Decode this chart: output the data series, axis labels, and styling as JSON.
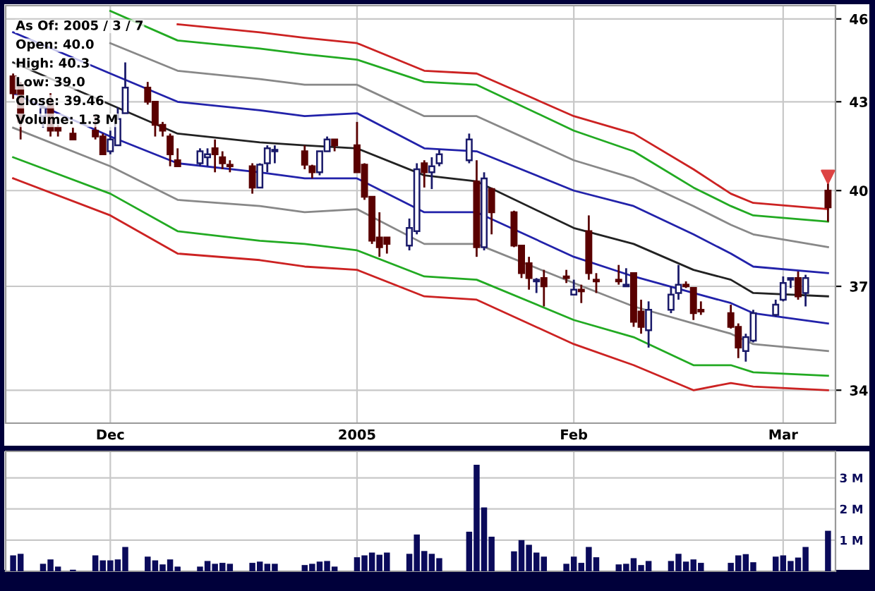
{
  "chart_data": [
    {
      "type": "candlestick",
      "x": [
        "2004-11-18",
        "2004-11-19",
        "2004-11-22",
        "2004-11-23",
        "2004-11-24",
        "2004-11-26",
        "2004-11-29",
        "2004-11-30",
        "2004-12-01",
        "2004-12-02",
        "2004-12-03",
        "2004-12-06",
        "2004-12-07",
        "2004-12-08",
        "2004-12-09",
        "2004-12-10",
        "2004-12-13",
        "2004-12-14",
        "2004-12-15",
        "2004-12-16",
        "2004-12-17",
        "2004-12-20",
        "2004-12-21",
        "2004-12-22",
        "2004-12-23",
        "2004-12-27",
        "2004-12-28",
        "2004-12-29",
        "2004-12-30",
        "2004-12-31",
        "2005-01-03",
        "2005-01-04",
        "2005-01-05",
        "2005-01-06",
        "2005-01-07",
        "2005-01-10",
        "2005-01-11",
        "2005-01-12",
        "2005-01-13",
        "2005-01-14",
        "2005-01-18",
        "2005-01-19",
        "2005-01-20",
        "2005-01-21",
        "2005-01-24",
        "2005-01-25",
        "2005-01-26",
        "2005-01-27",
        "2005-01-28",
        "2005-01-31",
        "2005-02-01",
        "2005-02-02",
        "2005-02-03",
        "2005-02-04",
        "2005-02-07",
        "2005-02-08",
        "2005-02-09",
        "2005-02-10",
        "2005-02-11",
        "2005-02-14",
        "2005-02-15",
        "2005-02-16",
        "2005-02-17",
        "2005-02-18",
        "2005-02-22",
        "2005-02-23",
        "2005-02-24",
        "2005-02-25",
        "2005-02-28",
        "2005-03-01",
        "2005-03-02",
        "2005-03-03",
        "2005-03-04",
        "2005-03-07"
      ],
      "ohlc": [
        [
          43.9,
          44.0,
          43.1,
          43.3
        ],
        [
          43.6,
          43.7,
          41.7,
          42.3
        ],
        [
          42.5,
          43.1,
          42.1,
          42.8
        ],
        [
          42.9,
          43.3,
          41.8,
          42.0
        ],
        [
          42.1,
          42.2,
          41.8,
          42.0
        ],
        [
          41.9,
          42.1,
          41.7,
          41.7
        ],
        [
          42.0,
          42.5,
          41.7,
          41.8
        ],
        [
          41.8,
          41.9,
          41.2,
          41.2
        ],
        [
          41.3,
          42.0,
          41.2,
          41.7
        ],
        [
          41.5,
          42.8,
          41.5,
          42.4
        ],
        [
          42.6,
          44.4,
          42.6,
          43.5
        ],
        [
          43.5,
          43.7,
          42.9,
          43.0
        ],
        [
          43.0,
          43.0,
          41.8,
          42.2
        ],
        [
          42.2,
          42.3,
          41.8,
          42.0
        ],
        [
          41.8,
          41.9,
          40.8,
          41.2
        ],
        [
          41.0,
          41.4,
          40.8,
          40.8
        ],
        [
          40.9,
          41.4,
          40.8,
          41.3
        ],
        [
          41.1,
          41.4,
          40.8,
          41.2
        ],
        [
          41.4,
          41.7,
          40.6,
          41.2
        ],
        [
          41.1,
          41.3,
          40.7,
          40.9
        ],
        [
          40.85,
          41.0,
          40.6,
          40.8
        ],
        [
          40.8,
          40.9,
          39.9,
          40.1
        ],
        [
          40.1,
          40.9,
          40.1,
          40.85
        ],
        [
          40.9,
          41.5,
          40.6,
          41.4
        ],
        [
          41.3,
          41.5,
          40.9,
          41.35
        ],
        [
          41.3,
          41.5,
          40.7,
          40.85
        ],
        [
          40.8,
          40.85,
          40.4,
          40.6
        ],
        [
          40.6,
          41.3,
          40.5,
          41.3
        ],
        [
          41.3,
          41.8,
          41.3,
          41.7
        ],
        [
          41.7,
          41.7,
          41.3,
          41.5
        ],
        [
          41.5,
          42.3,
          40.6,
          40.6
        ],
        [
          40.85,
          40.9,
          39.7,
          39.8
        ],
        [
          39.8,
          39.8,
          38.3,
          38.4
        ],
        [
          38.5,
          39.3,
          37.9,
          38.2
        ],
        [
          38.5,
          38.5,
          38.0,
          38.3
        ],
        [
          38.25,
          39.1,
          38.1,
          38.8
        ],
        [
          38.7,
          40.9,
          38.6,
          40.7
        ],
        [
          40.9,
          41.0,
          40.1,
          40.6
        ],
        [
          40.6,
          41.1,
          40.05,
          40.8
        ],
        [
          40.9,
          41.35,
          40.8,
          41.2
        ],
        [
          41.0,
          41.9,
          40.9,
          41.7
        ],
        [
          40.3,
          41.0,
          37.9,
          38.2
        ],
        [
          38.2,
          40.6,
          38.1,
          40.4
        ],
        [
          40.05,
          40.1,
          38.6,
          39.3
        ],
        [
          39.3,
          39.35,
          38.2,
          38.25
        ],
        [
          38.25,
          38.25,
          37.25,
          37.4
        ],
        [
          37.7,
          37.9,
          36.9,
          37.25
        ],
        [
          37.15,
          37.25,
          36.8,
          37.2
        ],
        [
          37.25,
          37.5,
          36.4,
          37.0
        ],
        [
          37.3,
          37.5,
          37.1,
          37.25
        ],
        [
          36.75,
          37.2,
          36.75,
          36.9
        ],
        [
          36.9,
          37.05,
          36.5,
          36.85
        ],
        [
          38.7,
          39.2,
          37.2,
          37.4
        ],
        [
          37.2,
          37.4,
          36.8,
          37.15
        ],
        [
          37.2,
          37.65,
          37.05,
          37.15
        ],
        [
          37.0,
          37.55,
          37.0,
          37.05
        ],
        [
          37.4,
          37.4,
          35.8,
          35.95
        ],
        [
          36.25,
          36.6,
          35.6,
          35.8
        ],
        [
          35.7,
          36.55,
          35.2,
          36.3
        ],
        [
          36.3,
          37.0,
          36.2,
          36.75
        ],
        [
          36.8,
          37.65,
          36.6,
          37.05
        ],
        [
          37.05,
          37.15,
          36.95,
          37.0
        ],
        [
          36.95,
          36.95,
          36.0,
          36.2
        ],
        [
          36.3,
          36.55,
          36.15,
          36.25
        ],
        [
          36.2,
          36.45,
          35.75,
          35.8
        ],
        [
          35.8,
          35.9,
          34.9,
          35.2
        ],
        [
          35.1,
          35.6,
          34.8,
          35.5
        ],
        [
          35.4,
          36.3,
          35.35,
          36.2
        ],
        [
          36.15,
          36.6,
          36.1,
          36.45
        ],
        [
          36.6,
          37.3,
          36.55,
          37.1
        ],
        [
          37.2,
          37.25,
          36.95,
          37.25
        ],
        [
          37.25,
          37.45,
          36.6,
          36.7
        ],
        [
          36.8,
          37.35,
          36.4,
          37.25
        ],
        [
          40.0,
          40.3,
          39.0,
          39.46
        ]
      ],
      "colors": [
        "#5a0000",
        "#5a0000",
        "#ffffff",
        "#5a0000",
        "#5a0000",
        "#5a0000",
        "#5a0000",
        "#5a0000",
        "#ffffff",
        "#ffffff",
        "#ffffff",
        "#5a0000",
        "#5a0000",
        "#5a0000",
        "#5a0000",
        "#5a0000",
        "#ffffff",
        "#ffffff",
        "#5a0000",
        "#5a0000",
        "#5a0000",
        "#5a0000",
        "#ffffff",
        "#ffffff",
        "#ffffff",
        "#5a0000",
        "#5a0000",
        "#ffffff",
        "#ffffff",
        "#5a0000",
        "#5a0000",
        "#5a0000",
        "#5a0000",
        "#5a0000",
        "#5a0000",
        "#ffffff",
        "#ffffff",
        "#5a0000",
        "#ffffff",
        "#ffffff",
        "#ffffff",
        "#5a0000",
        "#ffffff",
        "#5a0000",
        "#5a0000",
        "#5a0000",
        "#5a0000",
        "#ffffff",
        "#5a0000",
        "#5a0000",
        "#ffffff",
        "#5a0000",
        "#5a0000",
        "#5a0000",
        "#5a0000",
        "#ffffff",
        "#5a0000",
        "#5a0000",
        "#ffffff",
        "#ffffff",
        "#ffffff",
        "#5a0000",
        "#5a0000",
        "#5a0000",
        "#5a0000",
        "#5a0000",
        "#ffffff",
        "#ffffff",
        "#ffffff",
        "#ffffff",
        "#ffffff",
        "#5a0000",
        "#ffffff",
        "#5a0000"
      ],
      "log": true,
      "ylim": [
        33.1,
        46.5
      ],
      "yticks": [
        34,
        37,
        40,
        43,
        46
      ],
      "xlim": [
        "2004-11-17",
        "2005-03-08"
      ],
      "xticks": [
        {
          "value": "2004-12-01",
          "label": "Dec"
        },
        {
          "value": "2005-01-03",
          "label": "2005"
        },
        {
          "value": "2005-02-01",
          "label": "Feb"
        },
        {
          "value": "2005-03-01",
          "label": "Mar"
        }
      ],
      "grid": true,
      "annotations": [
        "As Of: 2005 / 3 / 7",
        "Open: 40.0",
        "High: 40.3",
        "Low: 39.0",
        "Close: 39.46",
        "Volume: 1.3 M"
      ],
      "series": [
        {
          "type": "line",
          "color": "#cc2222",
          "x": [
            "2004-12-10",
            "2004-12-21",
            "2004-12-27",
            "2005-01-03",
            "2005-01-12",
            "2005-01-19",
            "2005-02-01",
            "2005-02-09",
            "2005-02-17",
            "2005-02-22",
            "2005-02-25",
            "2005-03-07"
          ],
          "values": [
            45.8,
            45.5,
            45.3,
            45.1,
            44.1,
            44.0,
            42.5,
            41.9,
            40.7,
            39.9,
            39.6,
            39.4
          ]
        },
        {
          "type": "line",
          "color": "#22aa22",
          "x": [
            "2004-12-01",
            "2004-12-10",
            "2004-12-21",
            "2004-12-27",
            "2005-01-03",
            "2005-01-12",
            "2005-01-19",
            "2005-02-01",
            "2005-02-09",
            "2005-02-17",
            "2005-02-22",
            "2005-02-25",
            "2005-03-07"
          ],
          "values": [
            46.3,
            45.2,
            44.9,
            44.7,
            44.5,
            43.7,
            43.6,
            42.0,
            41.3,
            40.1,
            39.5,
            39.2,
            39.0
          ]
        },
        {
          "type": "line",
          "color": "#888888",
          "x": [
            "2004-12-01",
            "2004-12-10",
            "2004-12-21",
            "2004-12-27",
            "2005-01-03",
            "2005-01-12",
            "2005-01-19",
            "2005-02-01",
            "2005-02-09",
            "2005-02-17",
            "2005-02-22",
            "2005-02-25",
            "2005-03-07"
          ],
          "values": [
            45.1,
            44.1,
            43.8,
            43.6,
            43.6,
            42.5,
            42.5,
            41.0,
            40.4,
            39.5,
            38.9,
            38.6,
            38.2
          ]
        },
        {
          "type": "line",
          "color": "#2222aa",
          "x": [
            "2004-11-18",
            "2004-12-01",
            "2004-12-10",
            "2004-12-21",
            "2004-12-27",
            "2005-01-03",
            "2005-01-12",
            "2005-01-19",
            "2005-02-01",
            "2005-02-09",
            "2005-02-17",
            "2005-02-22",
            "2005-02-25",
            "2005-03-07"
          ],
          "values": [
            45.5,
            44.0,
            43.0,
            42.7,
            42.5,
            42.6,
            41.4,
            41.3,
            40.0,
            39.5,
            38.6,
            38.0,
            37.6,
            37.4
          ]
        },
        {
          "type": "line",
          "color": "#222222",
          "x": [
            "2004-11-18",
            "2004-12-01",
            "2004-12-10",
            "2004-12-21",
            "2004-12-27",
            "2005-01-03",
            "2005-01-12",
            "2005-01-19",
            "2005-02-01",
            "2005-02-09",
            "2005-02-17",
            "2005-02-22",
            "2005-02-25",
            "2005-03-07"
          ],
          "values": [
            44.4,
            42.9,
            41.9,
            41.6,
            41.5,
            41.4,
            40.5,
            40.3,
            38.8,
            38.3,
            37.5,
            37.2,
            36.8,
            36.7
          ]
        },
        {
          "type": "line",
          "color": "#2222aa",
          "x": [
            "2004-11-18",
            "2004-12-01",
            "2004-12-10",
            "2004-12-21",
            "2004-12-27",
            "2005-01-03",
            "2005-01-12",
            "2005-01-19",
            "2005-02-01",
            "2005-02-09",
            "2005-02-17",
            "2005-02-22",
            "2005-02-25",
            "2005-03-07"
          ],
          "values": [
            43.3,
            41.8,
            40.9,
            40.6,
            40.4,
            40.4,
            39.3,
            39.3,
            37.9,
            37.3,
            36.8,
            36.5,
            36.2,
            35.9
          ]
        },
        {
          "type": "line",
          "color": "#888888",
          "x": [
            "2004-11-18",
            "2004-12-01",
            "2004-12-10",
            "2004-12-21",
            "2004-12-27",
            "2005-01-03",
            "2005-01-12",
            "2005-01-19",
            "2005-02-01",
            "2005-02-09",
            "2005-02-17",
            "2005-02-22",
            "2005-02-25",
            "2005-03-07"
          ],
          "values": [
            42.1,
            40.8,
            39.7,
            39.5,
            39.3,
            39.4,
            38.3,
            38.3,
            37.1,
            36.4,
            35.9,
            35.6,
            35.3,
            35.1
          ]
        },
        {
          "type": "line",
          "color": "#22aa22",
          "x": [
            "2004-11-18",
            "2004-12-01",
            "2004-12-10",
            "2004-12-21",
            "2004-12-27",
            "2005-01-03",
            "2005-01-12",
            "2005-01-19",
            "2005-02-01",
            "2005-02-09",
            "2005-02-17",
            "2005-02-22",
            "2005-02-25",
            "2005-03-07"
          ],
          "values": [
            41.1,
            39.9,
            38.7,
            38.4,
            38.3,
            38.1,
            37.3,
            37.2,
            36.0,
            35.5,
            34.7,
            34.7,
            34.5,
            34.4
          ]
        },
        {
          "type": "line",
          "color": "#cc2222",
          "x": [
            "2004-11-18",
            "2004-12-01",
            "2004-12-10",
            "2004-12-21",
            "2004-12-27",
            "2005-01-03",
            "2005-01-12",
            "2005-01-19",
            "2005-02-01",
            "2005-02-09",
            "2005-02-17",
            "2005-02-22",
            "2005-02-25",
            "2005-03-07"
          ],
          "values": [
            40.4,
            39.2,
            38.0,
            37.8,
            37.6,
            37.5,
            36.7,
            36.6,
            35.3,
            34.7,
            34.0,
            34.2,
            34.1,
            34.0
          ]
        },
        {
          "type": "scatter",
          "color": "#dd4444",
          "marker": "triangle",
          "x": [
            "2005-03-07"
          ],
          "values": [
            40.45
          ]
        }
      ]
    },
    {
      "type": "bar",
      "x": [
        "2004-11-18",
        "2004-11-19",
        "2004-11-22",
        "2004-11-23",
        "2004-11-24",
        "2004-11-26",
        "2004-11-29",
        "2004-11-30",
        "2004-12-01",
        "2004-12-02",
        "2004-12-03",
        "2004-12-06",
        "2004-12-07",
        "2004-12-08",
        "2004-12-09",
        "2004-12-10",
        "2004-12-13",
        "2004-12-14",
        "2004-12-15",
        "2004-12-16",
        "2004-12-17",
        "2004-12-20",
        "2004-12-21",
        "2004-12-22",
        "2004-12-23",
        "2004-12-27",
        "2004-12-28",
        "2004-12-29",
        "2004-12-30",
        "2004-12-31",
        "2005-01-03",
        "2005-01-04",
        "2005-01-05",
        "2005-01-06",
        "2005-01-07",
        "2005-01-10",
        "2005-01-11",
        "2005-01-12",
        "2005-01-13",
        "2005-01-14",
        "2005-01-18",
        "2005-01-19",
        "2005-01-20",
        "2005-01-21",
        "2005-01-24",
        "2005-01-25",
        "2005-01-26",
        "2005-01-27",
        "2005-01-28",
        "2005-01-31",
        "2005-02-01",
        "2005-02-02",
        "2005-02-03",
        "2005-02-04",
        "2005-02-07",
        "2005-02-08",
        "2005-02-09",
        "2005-02-10",
        "2005-02-11",
        "2005-02-14",
        "2005-02-15",
        "2005-02-16",
        "2005-02-17",
        "2005-02-18",
        "2005-02-22",
        "2005-02-23",
        "2005-02-24",
        "2005-02-25",
        "2005-02-28",
        "2005-03-01",
        "2005-03-02",
        "2005-03-03",
        "2005-03-04",
        "2005-03-07"
      ],
      "values": [
        0.51,
        0.56,
        0.24,
        0.38,
        0.15,
        0.05,
        0.51,
        0.35,
        0.35,
        0.38,
        0.78,
        0.47,
        0.35,
        0.22,
        0.38,
        0.15,
        0.15,
        0.33,
        0.24,
        0.27,
        0.24,
        0.27,
        0.31,
        0.24,
        0.24,
        0.2,
        0.24,
        0.31,
        0.33,
        0.15,
        0.45,
        0.51,
        0.6,
        0.53,
        0.6,
        0.56,
        1.18,
        0.65,
        0.56,
        0.42,
        1.27,
        3.42,
        2.05,
        1.11,
        0.64,
        1.0,
        0.85,
        0.6,
        0.47,
        0.24,
        0.47,
        0.27,
        0.78,
        0.45,
        0.22,
        0.24,
        0.42,
        0.2,
        0.33,
        0.33,
        0.56,
        0.31,
        0.38,
        0.27,
        0.27,
        0.51,
        0.55,
        0.29,
        0.47,
        0.51,
        0.33,
        0.44,
        0.78,
        1.3
      ],
      "color": "#0a0a5a",
      "ylim": [
        0,
        3.85
      ],
      "yticks": [
        {
          "value": 1,
          "label": "1 M"
        },
        {
          "value": 2,
          "label": "2 M"
        },
        {
          "value": 3,
          "label": "3 M"
        }
      ],
      "xlim": [
        "2004-11-17",
        "2005-03-08"
      ],
      "xticks": [
        {
          "value": "2004-12-01",
          "label": null
        },
        {
          "value": "2005-01-03",
          "label": null
        },
        {
          "value": "2005-02-01",
          "label": null
        },
        {
          "value": "2005-03-01",
          "label": null
        }
      ],
      "grid": true,
      "tick_labels": "y"
    }
  ]
}
